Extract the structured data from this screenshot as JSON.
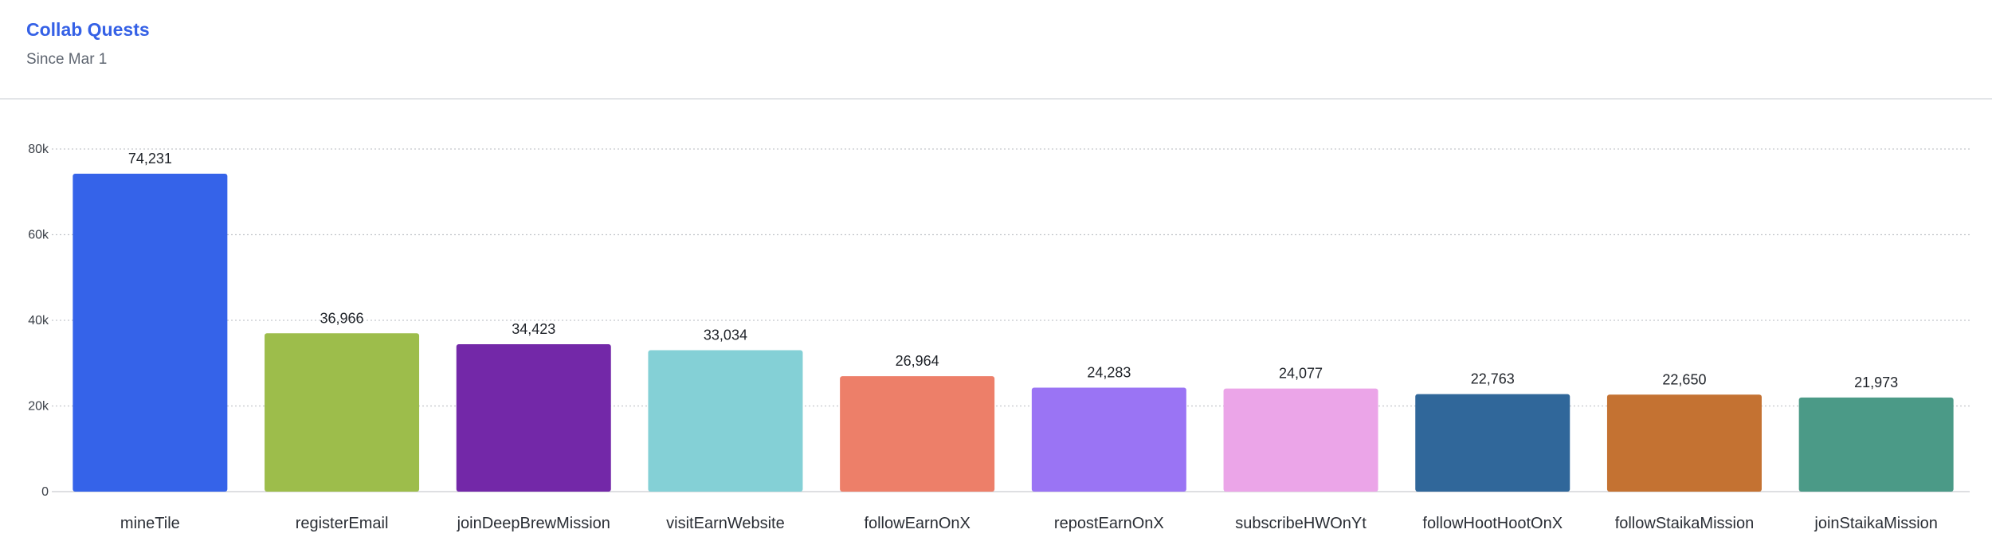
{
  "header": {
    "title": "Collab Quests",
    "subtitle": "Since Mar 1"
  },
  "chart_data": {
    "type": "bar",
    "title": "Collab Quests",
    "subtitle": "Since Mar 1",
    "xlabel": "",
    "ylabel": "",
    "ylim": [
      0,
      80000
    ],
    "yticks": [
      0,
      20000,
      40000,
      60000,
      80000
    ],
    "ytick_labels": [
      "0",
      "20k",
      "40k",
      "60k",
      "80k"
    ],
    "grid": "horizontal dotted",
    "legend": "none",
    "categories": [
      "mineTile",
      "registerEmail",
      "joinDeepBrewMission",
      "visitEarnWebsite",
      "followEarnOnX",
      "repostEarnOnX",
      "subscribeHWOnYt",
      "followHootHootOnX",
      "followStaikaMission",
      "joinStaikaMission"
    ],
    "values": [
      74231,
      36966,
      34423,
      33034,
      26964,
      24283,
      24077,
      22763,
      22650,
      21973
    ],
    "value_labels": [
      "74,231",
      "36,966",
      "34,423",
      "33,034",
      "26,964",
      "24,283",
      "24,077",
      "22,763",
      "22,650",
      "21,973"
    ],
    "colors": [
      "#3563e9",
      "#9dbd4b",
      "#7328a8",
      "#84d0d6",
      "#ed7f69",
      "#9a74f4",
      "#eba5e8",
      "#30679a",
      "#c47232",
      "#4b9a87"
    ]
  }
}
